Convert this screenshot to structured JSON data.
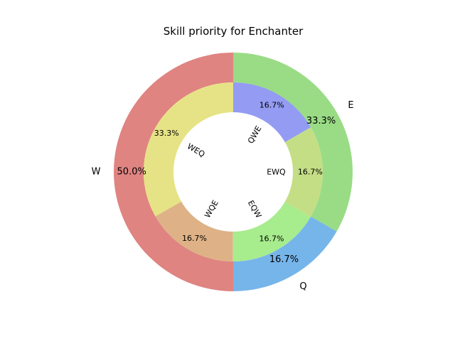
{
  "chart_data": {
    "type": "pie",
    "title": "Skill priority for Enchanter",
    "outer": {
      "labels": [
        "W",
        "Q",
        "E"
      ],
      "values": [
        50.0,
        16.7,
        33.3
      ],
      "pct_labels": [
        "50.0%",
        "16.7%",
        "33.3%"
      ],
      "colors": [
        "#df8481",
        "#76b5ea",
        "#99dc85"
      ]
    },
    "inner": {
      "labels": [
        "WEQ",
        "WQE",
        "EQW",
        "EWQ",
        "QWE"
      ],
      "values": [
        33.3,
        16.7,
        16.7,
        16.7,
        16.7
      ],
      "pct_labels": [
        "33.3%",
        "16.7%",
        "16.7%",
        "16.7%",
        "16.7%"
      ],
      "colors": [
        "#e6e386",
        "#deb286",
        "#a7ec8d",
        "#c4de86",
        "#939bf2"
      ]
    }
  }
}
